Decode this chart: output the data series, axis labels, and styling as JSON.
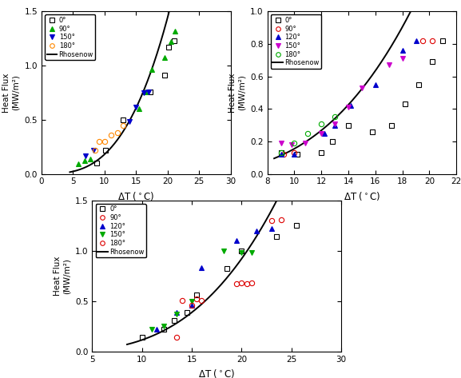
{
  "plot1": {
    "xlim": [
      0,
      30
    ],
    "ylim": [
      0.0,
      1.5
    ],
    "xticks": [
      0,
      5,
      10,
      15,
      20,
      25,
      30
    ],
    "yticks": [
      0.0,
      0.5,
      1.0,
      1.5
    ],
    "rhosenow_coeff": 0.00018,
    "rhosenow_exp": 3.0,
    "rhosenow_xrange": [
      4.5,
      21.5
    ],
    "series": [
      {
        "label": "0°",
        "color": "#000000",
        "marker": "s",
        "filled": false,
        "x": [
          8.8,
          10.2,
          13.0,
          17.2,
          19.5,
          20.2,
          21.0
        ],
        "y": [
          0.1,
          0.22,
          0.5,
          0.76,
          0.91,
          1.17,
          1.23
        ]
      },
      {
        "label": "90°",
        "color": "#00aa00",
        "marker": "^",
        "filled": true,
        "x": [
          5.8,
          6.8,
          7.8,
          15.5,
          16.5,
          17.5,
          19.5,
          20.5,
          21.2
        ],
        "y": [
          0.09,
          0.12,
          0.14,
          0.6,
          0.76,
          0.96,
          1.07,
          1.22,
          1.32
        ]
      },
      {
        "label": "150°",
        "color": "#0000cc",
        "marker": "v",
        "filled": true,
        "x": [
          7.0,
          8.2,
          14.0,
          15.0,
          16.2,
          17.0
        ],
        "y": [
          0.17,
          0.22,
          0.48,
          0.62,
          0.75,
          0.76
        ]
      },
      {
        "label": "180°",
        "color": "#ff8800",
        "marker": "o",
        "filled": false,
        "x": [
          8.5,
          9.2,
          10.0,
          11.0,
          12.0,
          13.0
        ],
        "y": [
          0.22,
          0.3,
          0.3,
          0.36,
          0.38,
          0.45
        ]
      }
    ]
  },
  "plot2": {
    "xlim": [
      8,
      22
    ],
    "ylim": [
      0.0,
      1.0
    ],
    "xticks": [
      8,
      10,
      12,
      14,
      16,
      18,
      20,
      22
    ],
    "yticks": [
      0.0,
      0.2,
      0.4,
      0.6,
      0.8,
      1.0
    ],
    "rhosenow_coeff": 0.000155,
    "rhosenow_exp": 3.0,
    "rhosenow_xrange": [
      8.5,
      20.5
    ],
    "series": [
      {
        "label": "0°",
        "color": "#000000",
        "marker": "s",
        "filled": false,
        "x": [
          9.0,
          10.2,
          12.0,
          12.8,
          14.0,
          15.8,
          17.2,
          18.2,
          19.2,
          20.2,
          21.0
        ],
        "y": [
          0.13,
          0.12,
          0.13,
          0.2,
          0.3,
          0.26,
          0.3,
          0.43,
          0.55,
          0.69,
          0.82
        ]
      },
      {
        "label": "90°",
        "color": "#dd0000",
        "marker": "o",
        "filled": false,
        "x": [
          9.2,
          10.0,
          19.5,
          20.2
        ],
        "y": [
          0.12,
          0.13,
          0.82,
          0.82
        ]
      },
      {
        "label": "120°",
        "color": "#0000cc",
        "marker": "^",
        "filled": true,
        "x": [
          9.0,
          10.0,
          12.2,
          13.0,
          14.2,
          16.0,
          18.0,
          19.0
        ],
        "y": [
          0.12,
          0.12,
          0.25,
          0.3,
          0.42,
          0.55,
          0.76,
          0.82
        ]
      },
      {
        "label": "150°",
        "color": "#cc00cc",
        "marker": "v",
        "filled": true,
        "x": [
          9.0,
          9.8,
          10.8,
          12.0,
          13.0,
          14.0,
          15.0,
          17.0,
          18.0
        ],
        "y": [
          0.19,
          0.18,
          0.19,
          0.25,
          0.31,
          0.41,
          0.53,
          0.67,
          0.71
        ]
      },
      {
        "label": "180°",
        "color": "#00aa00",
        "marker": "o",
        "filled": false,
        "x": [
          9.0,
          10.0,
          11.0,
          12.0,
          13.0
        ],
        "y": [
          0.13,
          0.19,
          0.25,
          0.31,
          0.35
        ]
      }
    ]
  },
  "plot3": {
    "xlim": [
      5,
      30
    ],
    "ylim": [
      0.0,
      1.5
    ],
    "xticks": [
      5,
      10,
      15,
      20,
      25,
      30
    ],
    "yticks": [
      0.0,
      0.5,
      1.0,
      1.5
    ],
    "rhosenow_coeff": 0.000115,
    "rhosenow_exp": 3.0,
    "rhosenow_xrange": [
      8.5,
      26.0
    ],
    "series": [
      {
        "label": "0°",
        "color": "#000000",
        "marker": "s",
        "filled": false,
        "x": [
          10.0,
          12.2,
          13.2,
          14.5,
          15.5,
          18.5,
          20.0,
          23.5,
          25.5
        ],
        "y": [
          0.14,
          0.22,
          0.31,
          0.39,
          0.56,
          0.82,
          1.0,
          1.14,
          1.25
        ]
      },
      {
        "label": "90°",
        "color": "#dd0000",
        "marker": "o",
        "filled": false,
        "x": [
          14.0,
          15.5,
          19.5,
          20.5,
          23.0,
          24.0
        ],
        "y": [
          0.51,
          0.52,
          0.67,
          0.67,
          1.3,
          1.31
        ]
      },
      {
        "label": "120°",
        "color": "#0000cc",
        "marker": "^",
        "filled": true,
        "x": [
          11.5,
          13.5,
          15.0,
          16.0,
          19.5,
          21.5,
          23.0
        ],
        "y": [
          0.22,
          0.39,
          0.46,
          0.83,
          1.1,
          1.2,
          1.22
        ]
      },
      {
        "label": "150°",
        "color": "#00aa00",
        "marker": "v",
        "filled": true,
        "x": [
          11.0,
          12.2,
          13.5,
          15.0,
          18.2,
          20.0,
          21.0
        ],
        "y": [
          0.22,
          0.25,
          0.37,
          0.5,
          1.0,
          0.98,
          0.98
        ]
      },
      {
        "label": "180°",
        "color": "#dd0000",
        "marker": "o",
        "filled": false,
        "x": [
          13.5,
          15.0,
          16.0,
          20.0,
          21.0
        ],
        "y": [
          0.14,
          0.46,
          0.51,
          0.68,
          0.68
        ]
      }
    ]
  }
}
